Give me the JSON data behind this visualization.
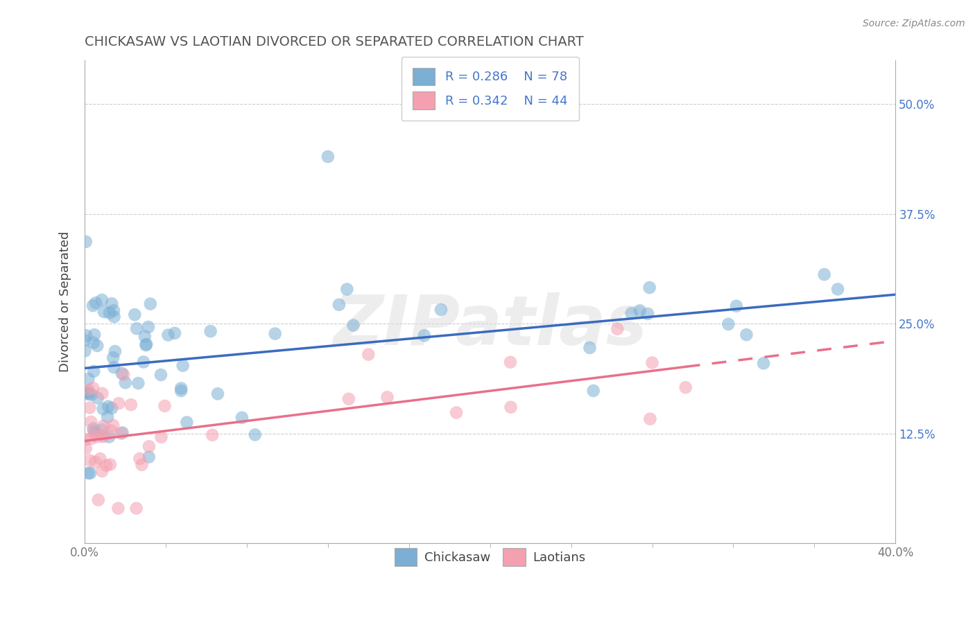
{
  "title": "CHICKASAW VS LAOTIAN DIVORCED OR SEPARATED CORRELATION CHART",
  "source": "Source: ZipAtlas.com",
  "ylabel": "Divorced or Separated",
  "xlim": [
    0.0,
    0.4
  ],
  "ylim": [
    0.0,
    0.55
  ],
  "xtick_positions": [
    0.0,
    0.4
  ],
  "xtick_labels": [
    "0.0%",
    "40.0%"
  ],
  "ytick_positions": [
    0.125,
    0.25,
    0.375,
    0.5
  ],
  "ytick_labels": [
    "12.5%",
    "25.0%",
    "37.5%",
    "50.0%"
  ],
  "grid_yticks": [
    0.0,
    0.125,
    0.25,
    0.375,
    0.5
  ],
  "chickasaw_color": "#7BAFD4",
  "laotian_color": "#F4A0B0",
  "chickasaw_line_color": "#3A6BBF",
  "laotian_line_color": "#E8708A",
  "legend_R1": "R = 0.286",
  "legend_N1": "N = 78",
  "legend_R2": "R = 0.342",
  "legend_N2": "N = 44",
  "background_color": "#FFFFFF",
  "grid_color": "#CCCCCC",
  "title_color": "#555555",
  "ytick_color": "#4477CC",
  "xtick_color": "#777777",
  "watermark": "ZIPatlas",
  "watermark_color": "#DDDDDD"
}
